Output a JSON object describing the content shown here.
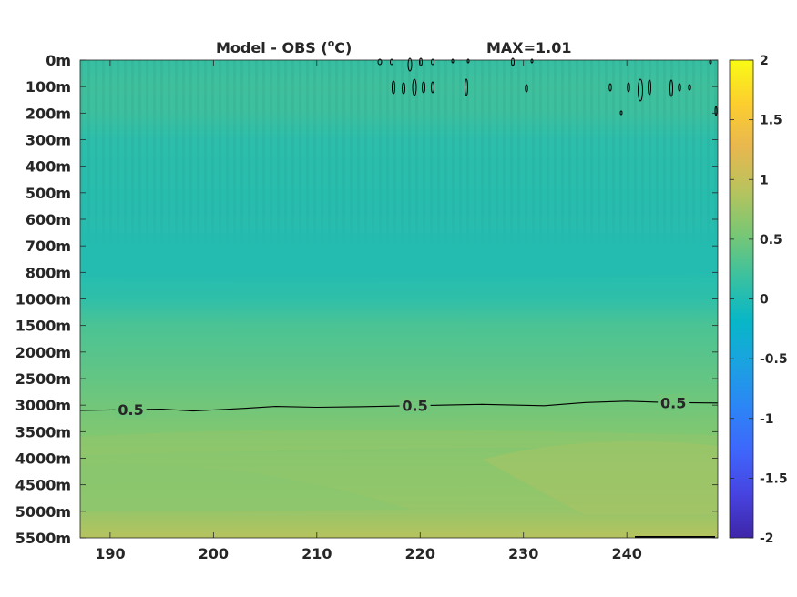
{
  "chart_data": {
    "type": "heatmap",
    "title": "Model - OBS (",
    "title_sup": "o",
    "title_unit": "C)",
    "max_label": "MAX=1.01",
    "xlabel": "",
    "ylabel": "",
    "x_ticks": [
      190,
      200,
      210,
      220,
      230,
      240
    ],
    "xlim": [
      187.1,
      248.8
    ],
    "y_tick_labels": [
      "0m",
      "100m",
      "200m",
      "300m",
      "400m",
      "500m",
      "600m",
      "700m",
      "800m",
      "1000m",
      "1500m",
      "2000m",
      "2500m",
      "3000m",
      "3500m",
      "4000m",
      "4500m",
      "5000m",
      "5500m"
    ],
    "depth_profile": [
      {
        "depth_index": 0,
        "value": 0.2
      },
      {
        "depth_index": 1,
        "value": 0.26
      },
      {
        "depth_index": 2,
        "value": 0.24
      },
      {
        "depth_index": 3,
        "value": 0.1
      },
      {
        "depth_index": 4,
        "value": 0.08
      },
      {
        "depth_index": 5,
        "value": 0.06
      },
      {
        "depth_index": 6,
        "value": 0.05
      },
      {
        "depth_index": 7,
        "value": 0.03
      },
      {
        "depth_index": 8,
        "value": 0.03
      },
      {
        "depth_index": 9,
        "value": 0.1
      },
      {
        "depth_index": 10,
        "value": 0.28
      },
      {
        "depth_index": 11,
        "value": 0.35
      },
      {
        "depth_index": 12,
        "value": 0.42
      },
      {
        "depth_index": 13,
        "value": 0.5
      },
      {
        "depth_index": 14,
        "value": 0.58
      },
      {
        "depth_index": 15,
        "value": 0.65
      },
      {
        "depth_index": 16,
        "value": 0.68
      },
      {
        "depth_index": 17,
        "value": 0.72
      },
      {
        "depth_index": 18,
        "value": 0.9
      }
    ],
    "contour": {
      "level": 0.5,
      "labels": [
        "0.5",
        "0.5",
        "0.5"
      ],
      "label_x": [
        192,
        219.5,
        244.5
      ],
      "points": [
        {
          "x": 187.1,
          "d": 13.2
        },
        {
          "x": 195,
          "d": 13.15
        },
        {
          "x": 198,
          "d": 13.22
        },
        {
          "x": 203,
          "d": 13.12
        },
        {
          "x": 206,
          "d": 13.05
        },
        {
          "x": 210,
          "d": 13.08
        },
        {
          "x": 214,
          "d": 13.06
        },
        {
          "x": 222,
          "d": 13.0
        },
        {
          "x": 226,
          "d": 12.97
        },
        {
          "x": 232,
          "d": 13.02
        },
        {
          "x": 236,
          "d": 12.9
        },
        {
          "x": 240,
          "d": 12.85
        },
        {
          "x": 244,
          "d": 12.9
        },
        {
          "x": 248.8,
          "d": 12.92
        }
      ]
    },
    "colorbar": {
      "ticks": [
        2,
        1.5,
        1,
        0.5,
        0,
        -0.5,
        -1,
        -1.5,
        -2
      ],
      "tick_labels": [
        "2",
        "1.5",
        "1",
        "0.5",
        "0",
        "-0.5",
        "-1",
        "-1.5",
        "-2"
      ],
      "range": [
        -2,
        2
      ],
      "colormap": "parula",
      "colors": [
        "#3e26a8",
        "#4743e0",
        "#3e66fb",
        "#2c85f6",
        "#1ba2e1",
        "#07b7c7",
        "#3ac1a0",
        "#79c774",
        "#b8c35d",
        "#e8b74f",
        "#fcce2e",
        "#f9fb15"
      ]
    },
    "grid": false,
    "legend": "none"
  }
}
